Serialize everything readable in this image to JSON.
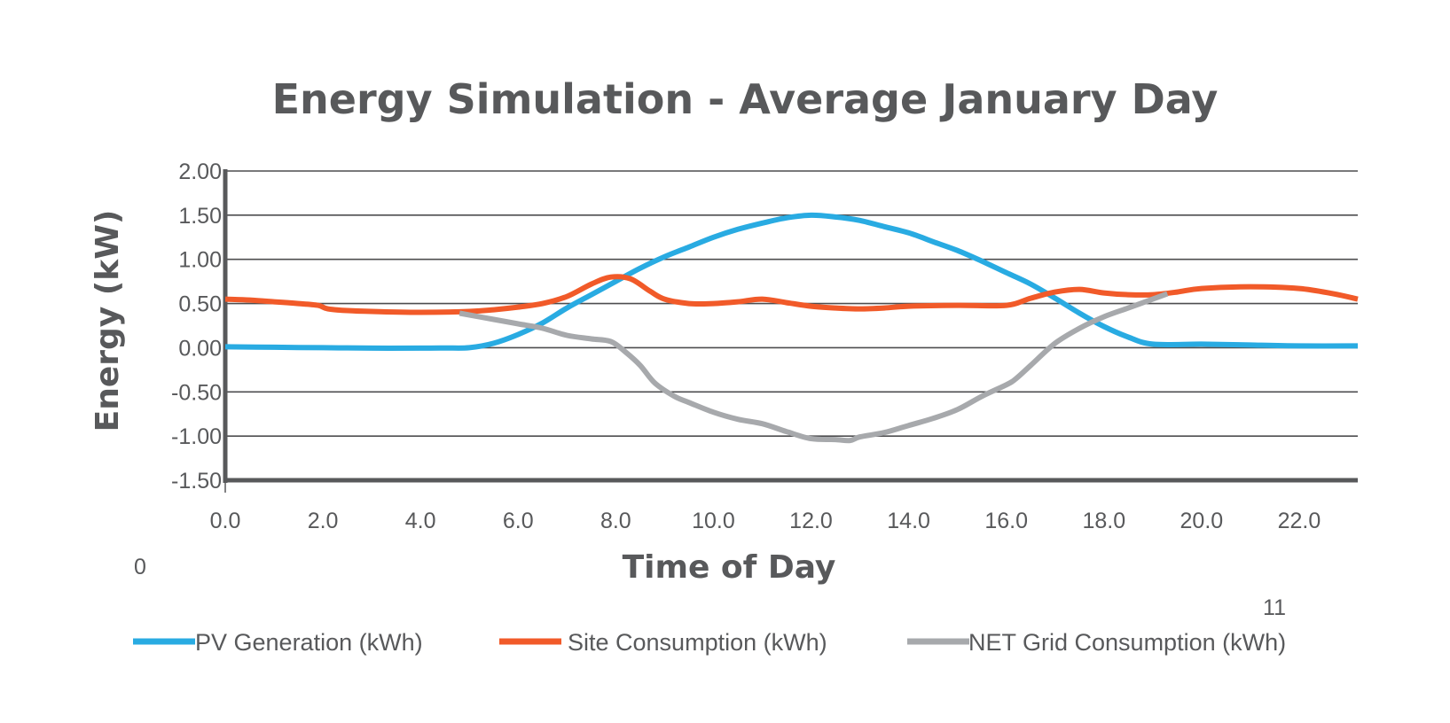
{
  "chart_data": {
    "type": "line",
    "title": "Energy Simulation - Average January Day",
    "xlabel": "Time of Day",
    "ylabel": "Energy (kW)",
    "x_ticks": [
      "0.0",
      "2.0",
      "4.0",
      "6.0",
      "8.0",
      "10.0",
      "12.0",
      "14.0",
      "16.0",
      "18.0",
      "20.0",
      "22.0"
    ],
    "y_ticks": [
      "2.00",
      "1.50",
      "1.00",
      "0.50",
      "0.00",
      "-0.50",
      "-1.00",
      "-1.50"
    ],
    "xlim": [
      0,
      23.2
    ],
    "ylim": [
      -1.5,
      2.0
    ],
    "grid": true,
    "legend_position": "bottom",
    "annotations": [
      "0",
      "11"
    ],
    "series": [
      {
        "name": "PV Generation (kWh)",
        "color": "#29abe2",
        "points": [
          [
            0,
            0.01
          ],
          [
            1,
            0.005
          ],
          [
            2,
            0.0
          ],
          [
            3,
            -0.005
          ],
          [
            4,
            -0.005
          ],
          [
            4.5,
            -0.003
          ],
          [
            5,
            0.0
          ],
          [
            5.5,
            0.05
          ],
          [
            6,
            0.15
          ],
          [
            6.5,
            0.28
          ],
          [
            7,
            0.45
          ],
          [
            7.5,
            0.6
          ],
          [
            8,
            0.75
          ],
          [
            8.5,
            0.9
          ],
          [
            9,
            1.03
          ],
          [
            9.5,
            1.14
          ],
          [
            10,
            1.25
          ],
          [
            10.5,
            1.34
          ],
          [
            11,
            1.41
          ],
          [
            11.5,
            1.47
          ],
          [
            12,
            1.5
          ],
          [
            12.5,
            1.48
          ],
          [
            13,
            1.44
          ],
          [
            13.5,
            1.37
          ],
          [
            14,
            1.3
          ],
          [
            14.5,
            1.2
          ],
          [
            15,
            1.1
          ],
          [
            15.5,
            0.98
          ],
          [
            16,
            0.85
          ],
          [
            16.5,
            0.72
          ],
          [
            17,
            0.56
          ],
          [
            17.5,
            0.39
          ],
          [
            18,
            0.24
          ],
          [
            18.5,
            0.12
          ],
          [
            19,
            0.04
          ],
          [
            20,
            0.04
          ],
          [
            21,
            0.03
          ],
          [
            22,
            0.02
          ],
          [
            23.2,
            0.02
          ]
        ]
      },
      {
        "name": "Site Consumption (kWh)",
        "color": "#f15a29",
        "points": [
          [
            0,
            0.55
          ],
          [
            0.5,
            0.54
          ],
          [
            1,
            0.52
          ],
          [
            1.5,
            0.5
          ],
          [
            1.9,
            0.48
          ],
          [
            2.1,
            0.44
          ],
          [
            2.5,
            0.42
          ],
          [
            3,
            0.41
          ],
          [
            4,
            0.4
          ],
          [
            5,
            0.41
          ],
          [
            5.5,
            0.43
          ],
          [
            6,
            0.46
          ],
          [
            6.5,
            0.5
          ],
          [
            7,
            0.58
          ],
          [
            7.5,
            0.72
          ],
          [
            7.9,
            0.8
          ],
          [
            8.3,
            0.78
          ],
          [
            8.7,
            0.64
          ],
          [
            9,
            0.55
          ],
          [
            9.5,
            0.5
          ],
          [
            10,
            0.5
          ],
          [
            10.5,
            0.52
          ],
          [
            11,
            0.55
          ],
          [
            11.5,
            0.51
          ],
          [
            12,
            0.47
          ],
          [
            12.5,
            0.45
          ],
          [
            13,
            0.44
          ],
          [
            13.5,
            0.45
          ],
          [
            14,
            0.47
          ],
          [
            15,
            0.48
          ],
          [
            16,
            0.48
          ],
          [
            16.5,
            0.56
          ],
          [
            17,
            0.63
          ],
          [
            17.5,
            0.66
          ],
          [
            18,
            0.62
          ],
          [
            18.5,
            0.6
          ],
          [
            19,
            0.6
          ],
          [
            19.5,
            0.63
          ],
          [
            20,
            0.67
          ],
          [
            21,
            0.69
          ],
          [
            22,
            0.67
          ],
          [
            22.7,
            0.61
          ],
          [
            23.2,
            0.55
          ]
        ]
      },
      {
        "name": "NET Grid Consumption (kWh)",
        "color": "#a7a9ac",
        "points": [
          [
            4.8,
            0.39
          ],
          [
            5.5,
            0.32
          ],
          [
            6,
            0.27
          ],
          [
            6.5,
            0.22
          ],
          [
            7,
            0.14
          ],
          [
            7.5,
            0.1
          ],
          [
            7.9,
            0.07
          ],
          [
            8.2,
            -0.05
          ],
          [
            8.5,
            -0.2
          ],
          [
            8.8,
            -0.4
          ],
          [
            9.2,
            -0.55
          ],
          [
            9.5,
            -0.62
          ],
          [
            10,
            -0.73
          ],
          [
            10.5,
            -0.81
          ],
          [
            11,
            -0.86
          ],
          [
            11.5,
            -0.95
          ],
          [
            12,
            -1.03
          ],
          [
            12.5,
            -1.04
          ],
          [
            12.8,
            -1.05
          ],
          [
            13,
            -1.01
          ],
          [
            13.5,
            -0.96
          ],
          [
            14,
            -0.88
          ],
          [
            14.5,
            -0.8
          ],
          [
            15,
            -0.7
          ],
          [
            15.5,
            -0.55
          ],
          [
            16,
            -0.42
          ],
          [
            16.2,
            -0.35
          ],
          [
            16.5,
            -0.2
          ],
          [
            17,
            0.05
          ],
          [
            17.5,
            0.22
          ],
          [
            18,
            0.35
          ],
          [
            18.5,
            0.45
          ],
          [
            19,
            0.55
          ],
          [
            19.3,
            0.61
          ]
        ]
      }
    ]
  }
}
